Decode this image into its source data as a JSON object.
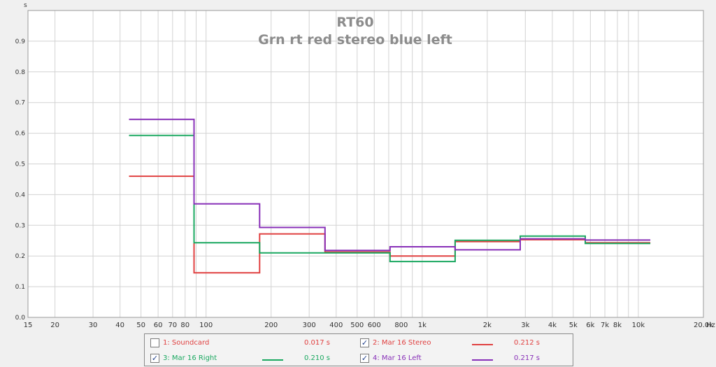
{
  "chart_data": {
    "type": "line",
    "title": "RT60",
    "subtitle": "Grn rt red stereo blue left",
    "y_unit": "s",
    "x_unit": "Hz",
    "x_scale": "log",
    "xlim": [
      15,
      20000
    ],
    "ylim": [
      0,
      1.0
    ],
    "grid": true,
    "y_ticks": [
      "0.0",
      "0.1",
      "0.2",
      "0.3",
      "0.4",
      "0.5",
      "0.6",
      "0.7",
      "0.8",
      "0.9"
    ],
    "y_tick_values": [
      0,
      0.1,
      0.2,
      0.3,
      0.4,
      0.5,
      0.6,
      0.7,
      0.8,
      0.9
    ],
    "x_ticks": [
      {
        "v": 15,
        "label": "15"
      },
      {
        "v": 20,
        "label": "20"
      },
      {
        "v": 30,
        "label": "30"
      },
      {
        "v": 40,
        "label": "40"
      },
      {
        "v": 50,
        "label": "50"
      },
      {
        "v": 60,
        "label": "60"
      },
      {
        "v": 70,
        "label": "70"
      },
      {
        "v": 80,
        "label": "80"
      },
      {
        "v": 100,
        "label": "100"
      },
      {
        "v": 200,
        "label": "200"
      },
      {
        "v": 300,
        "label": "300"
      },
      {
        "v": 400,
        "label": "400"
      },
      {
        "v": 500,
        "label": "500"
      },
      {
        "v": 600,
        "label": "600"
      },
      {
        "v": 800,
        "label": "800"
      },
      {
        "v": 1000,
        "label": "1k"
      },
      {
        "v": 2000,
        "label": "2k"
      },
      {
        "v": 3000,
        "label": "3k"
      },
      {
        "v": 4000,
        "label": "4k"
      },
      {
        "v": 5000,
        "label": "5k"
      },
      {
        "v": 6000,
        "label": "6k"
      },
      {
        "v": 7000,
        "label": "7k"
      },
      {
        "v": 8000,
        "label": "8k"
      },
      {
        "v": 10000,
        "label": "10k"
      },
      {
        "v": 20000,
        "label": "20.0k"
      }
    ],
    "band_edges_hz": [
      44,
      88,
      177,
      355,
      710,
      1420,
      2840,
      5680,
      11360
    ],
    "series": [
      {
        "name": "Mar 16 Stereo",
        "color": "#e04040",
        "values": [
          0.46,
          0.145,
          0.272,
          0.213,
          0.2,
          0.247,
          0.253,
          0.243
        ]
      },
      {
        "name": "Mar 16 Right",
        "color": "#1aa860",
        "values": [
          0.593,
          0.243,
          0.21,
          0.21,
          0.182,
          0.251,
          0.265,
          0.241
        ]
      },
      {
        "name": "Mar 16 Left",
        "color": "#8830b8",
        "values": [
          0.645,
          0.37,
          0.293,
          0.218,
          0.23,
          0.22,
          0.256,
          0.252
        ]
      }
    ]
  },
  "legend": {
    "items": [
      {
        "label": "1: Soundcard",
        "value": "0.017 s",
        "checked": false,
        "color": "#e04040",
        "checkmark": ""
      },
      {
        "label": "2: Mar 16 Stereo",
        "value": "0.212 s",
        "checked": true,
        "color": "#e04040",
        "checkmark": "✓"
      },
      {
        "label": "3: Mar 16 Right",
        "value": "0.210 s",
        "checked": true,
        "color": "#1aa860",
        "checkmark": "✓"
      },
      {
        "label": "4: Mar 16 Left",
        "value": "0.217 s",
        "checked": true,
        "color": "#8830b8",
        "checkmark": "✓"
      }
    ]
  }
}
